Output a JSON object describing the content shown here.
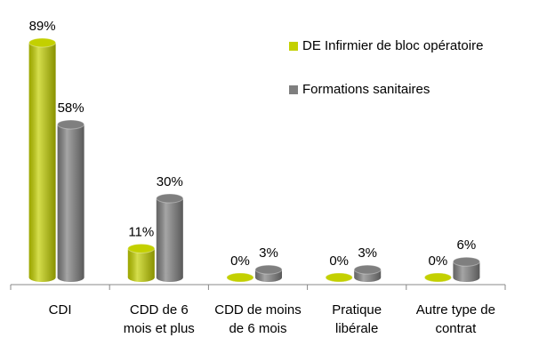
{
  "chart_data": {
    "type": "bar",
    "categories": [
      "CDI",
      "CDD de 6 mois et plus",
      "CDD de moins de 6 mois",
      "Pratique libérale",
      "Autre type de contrat"
    ],
    "series": [
      {
        "name": "DE Infirmier de bloc opératoire",
        "color": "#c3d000",
        "values": [
          89,
          11,
          0,
          0,
          0
        ],
        "value_labels": [
          "89%",
          "11%",
          "0%",
          "0%",
          "0%"
        ]
      },
      {
        "name": "Formations sanitaires",
        "color": "#7f7f7f",
        "values": [
          58,
          30,
          3,
          3,
          6
        ],
        "value_labels": [
          "58%",
          "30%",
          "3%",
          "3%",
          "6%"
        ]
      }
    ],
    "legend": "top-right"
  }
}
